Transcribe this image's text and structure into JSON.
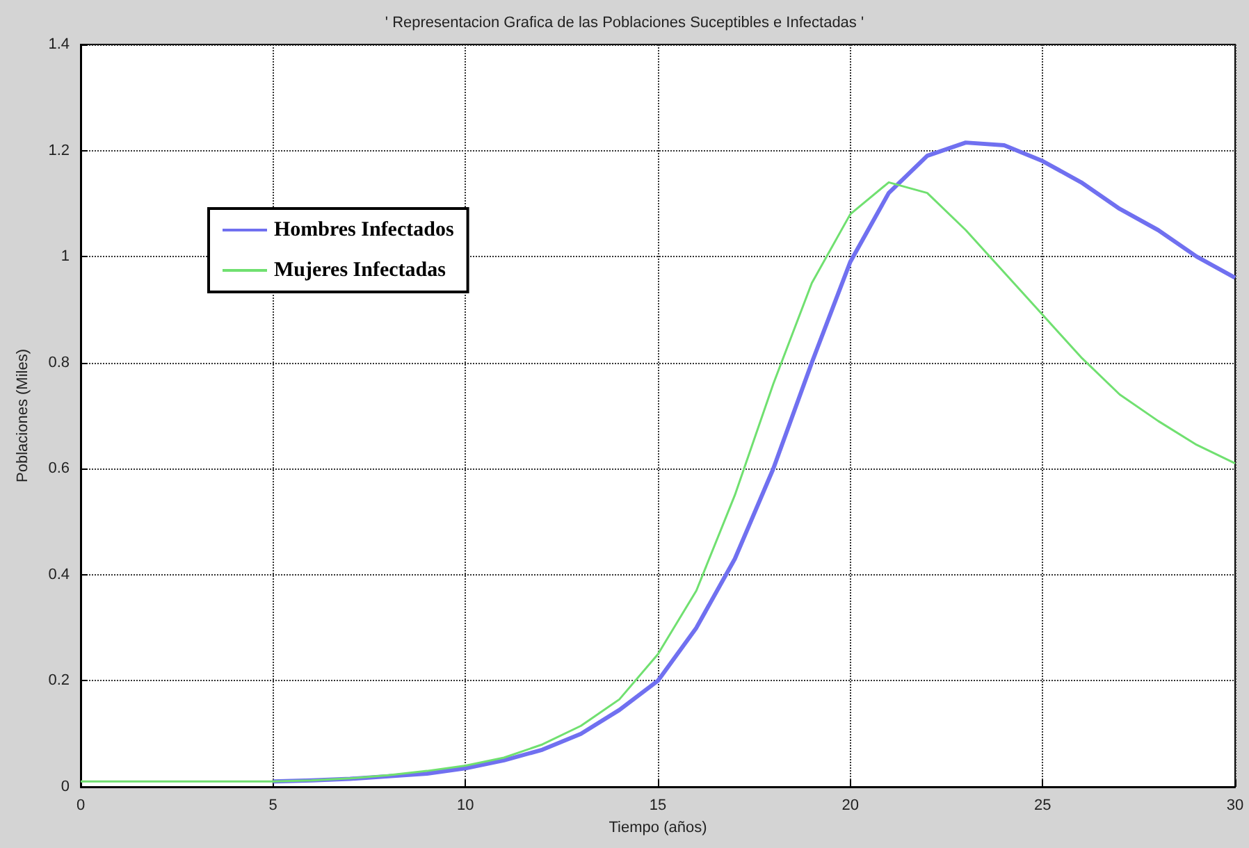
{
  "chart_data": {
    "type": "line",
    "title": "' Representacion Grafica de las Poblaciones Suceptibles e Infectadas '",
    "xlabel": "Tiempo (años)",
    "ylabel": "Poblaciones (Miles)",
    "x": [
      0,
      1,
      2,
      3,
      4,
      5,
      6,
      7,
      8,
      9,
      10,
      11,
      12,
      13,
      14,
      15,
      16,
      17,
      18,
      19,
      20,
      21,
      22,
      23,
      24,
      25,
      26,
      27,
      28,
      29,
      30
    ],
    "series": [
      {
        "name": "Hombres Infectados",
        "color": "#7070f0",
        "values": [
          null,
          null,
          null,
          null,
          null,
          0.01,
          0.012,
          0.015,
          0.02,
          0.025,
          0.035,
          0.05,
          0.07,
          0.1,
          0.145,
          0.2,
          0.3,
          0.43,
          0.6,
          0.8,
          0.99,
          1.12,
          1.19,
          1.215,
          1.21,
          1.18,
          1.14,
          1.09,
          1.05,
          1.0,
          0.96
        ]
      },
      {
        "name": "Mujeres Infectadas",
        "color": "#70e070",
        "values": [
          0.01,
          0.01,
          0.01,
          0.01,
          0.01,
          0.01,
          0.012,
          0.016,
          0.022,
          0.03,
          0.04,
          0.055,
          0.08,
          0.115,
          0.165,
          0.25,
          0.37,
          0.55,
          0.76,
          0.95,
          1.08,
          1.14,
          1.12,
          1.05,
          0.97,
          0.89,
          0.81,
          0.74,
          0.69,
          0.645,
          0.61
        ]
      }
    ],
    "xlim": [
      0,
      30
    ],
    "xticks": [
      0,
      5,
      10,
      15,
      20,
      25,
      30
    ],
    "ylim": [
      0,
      1.4
    ],
    "yticks": [
      0,
      0.2,
      0.4,
      0.6,
      0.8,
      1,
      1.2,
      1.4
    ],
    "grid": true,
    "legend": "top left",
    "line_style": "solid",
    "marker": "none"
  }
}
